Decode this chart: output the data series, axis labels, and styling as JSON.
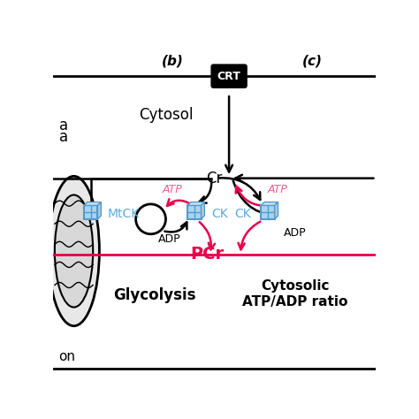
{
  "bg_color": "#ffffff",
  "title_b": "(b)",
  "title_c": "(c)",
  "crt_label": "CRT",
  "cr_label": "Cr",
  "pcr_label": "PCr",
  "atp_label": "ATP",
  "adp_label": "ADP",
  "mtck_label": "MtCK",
  "ck_label": "CK",
  "cytosol_label": "Cytosol",
  "glycolysis_label": "Glycolysis",
  "cytosolic_label": "Cytosolic\nATP/ADP ratio",
  "ion_label": "on",
  "red_color": "#e8004a",
  "blue_color": "#5aabdc",
  "black_color": "#000000",
  "atp_pink": "#f06090"
}
